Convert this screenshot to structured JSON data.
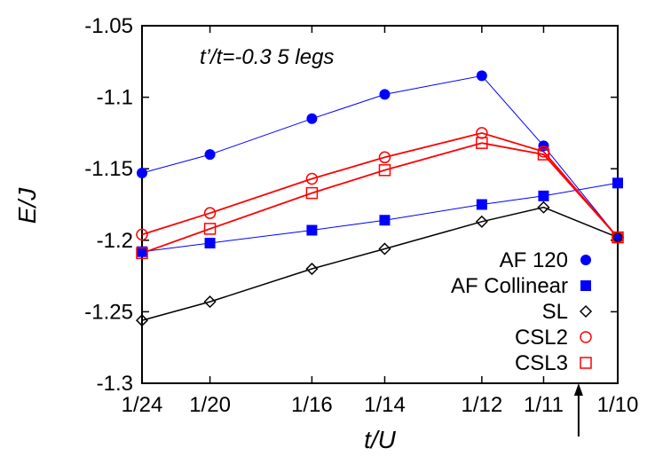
{
  "chart_data": {
    "type": "line",
    "title": "",
    "annotation": "t’/t=-0.3 5 legs",
    "xlabel": "t/U",
    "ylabel": "E/J",
    "xlim": [
      0.0416667,
      0.1
    ],
    "ylim": [
      -1.3,
      -1.05
    ],
    "x_tick_labels": [
      "1/24",
      "1/20",
      "1/16",
      "1/14",
      "1/12",
      "1/11",
      "1/10"
    ],
    "x_tick_values": [
      0.0416667,
      0.05,
      0.0625,
      0.0714286,
      0.0833333,
      0.0909091,
      0.1
    ],
    "y_ticks": [
      -1.3,
      -1.25,
      -1.2,
      -1.15,
      -1.1,
      -1.05
    ],
    "y_tick_labels": [
      "-1.3",
      "-1.25",
      "-1.2",
      "-1.15",
      "-1.1",
      "-1.05"
    ],
    "grid": false,
    "legend_position": "bottom-right",
    "arrow_marker": {
      "x": 0.0952,
      "direction": "up"
    },
    "series": [
      {
        "name": "AF 120",
        "color": "#0000ff",
        "marker": "filled-circle",
        "x": [
          0.0416667,
          0.05,
          0.0625,
          0.0714286,
          0.0833333,
          0.0909091,
          0.1
        ],
        "y": [
          -1.153,
          -1.14,
          -1.115,
          -1.098,
          -1.085,
          -1.134,
          -1.198
        ]
      },
      {
        "name": "AF Collinear",
        "color": "#0000ff",
        "marker": "filled-square",
        "x": [
          0.0416667,
          0.05,
          0.0625,
          0.0714286,
          0.0833333,
          0.0909091,
          0.1
        ],
        "y": [
          -1.208,
          -1.202,
          -1.193,
          -1.186,
          -1.175,
          -1.169,
          -1.16
        ]
      },
      {
        "name": "SL",
        "color": "#000000",
        "marker": "open-diamond",
        "x": [
          0.0416667,
          0.05,
          0.0625,
          0.0714286,
          0.0833333,
          0.0909091,
          0.1
        ],
        "y": [
          -1.256,
          -1.243,
          -1.22,
          -1.206,
          -1.187,
          -1.177,
          -1.198
        ]
      },
      {
        "name": "CSL2",
        "color": "#ff0000",
        "marker": "open-circle",
        "x": [
          0.0416667,
          0.05,
          0.0625,
          0.0714286,
          0.0833333,
          0.0909091,
          0.1
        ],
        "y": [
          -1.196,
          -1.181,
          -1.157,
          -1.142,
          -1.125,
          -1.138,
          -1.198
        ]
      },
      {
        "name": "CSL3",
        "color": "#ff0000",
        "marker": "open-square",
        "x": [
          0.0416667,
          0.05,
          0.0625,
          0.0714286,
          0.0833333,
          0.0909091,
          0.1
        ],
        "y": [
          -1.209,
          -1.192,
          -1.167,
          -1.151,
          -1.132,
          -1.14,
          -1.198
        ]
      }
    ]
  }
}
